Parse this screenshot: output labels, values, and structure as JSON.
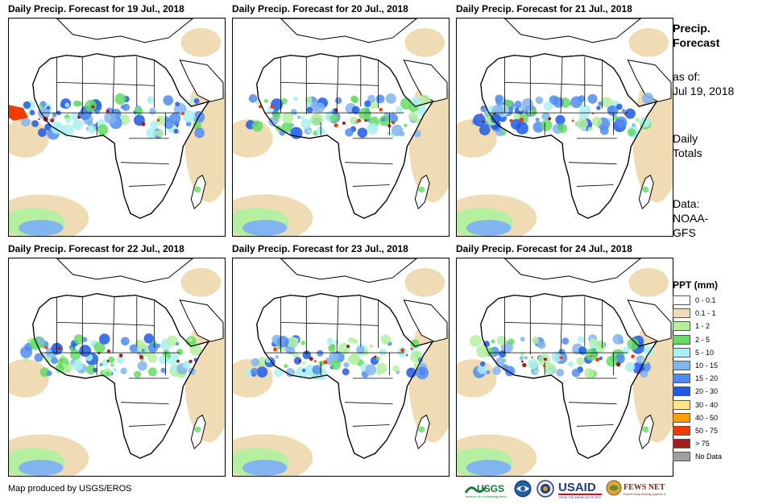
{
  "panels": [
    {
      "title": "Daily Precip. Forecast for 19 Jul., 2018"
    },
    {
      "title": "Daily Precip. Forecast for 20 Jul., 2018"
    },
    {
      "title": "Daily Precip. Forecast for 21 Jul., 2018"
    },
    {
      "title": "Daily Precip. Forecast for 22 Jul., 2018"
    },
    {
      "title": "Daily Precip. Forecast for 23 Jul., 2018"
    },
    {
      "title": "Daily Precip. Forecast for 24 Jul., 2018"
    }
  ],
  "sidebar": {
    "title_line1": "Precip.",
    "title_line2": "Forecast",
    "asof_label": "as of:",
    "asof_date": "Jul 19, 2018",
    "totals_line1": "Daily",
    "totals_line2": "Totals",
    "data_line1": "Data:",
    "data_line2": "NOAA-",
    "data_line3": "GFS"
  },
  "legend": {
    "title": "PPT (mm)",
    "items": [
      {
        "label": "0 - 0.1",
        "color": "#ffffff"
      },
      {
        "label": "0.1 - 1",
        "color": "#f0dcb4"
      },
      {
        "label": "1 - 2",
        "color": "#b4f0a0"
      },
      {
        "label": "2 - 5",
        "color": "#64dc64"
      },
      {
        "label": "5 - 10",
        "color": "#aaf0f0"
      },
      {
        "label": "10 - 15",
        "color": "#82b4f0"
      },
      {
        "label": "15 - 20",
        "color": "#508cf0"
      },
      {
        "label": "20 - 30",
        "color": "#1e5ae6"
      },
      {
        "label": "30 - 40",
        "color": "#ffe682"
      },
      {
        "label": "40 - 50",
        "color": "#ffa000"
      },
      {
        "label": "50 - 75",
        "color": "#f03c00"
      },
      {
        "label": "> 75",
        "color": "#a01e1e"
      },
      {
        "label": "No Data",
        "color": "#a0a0a0"
      }
    ]
  },
  "footer": {
    "credit": "Map produced by USGS/EROS",
    "logos": [
      "USGS",
      "NOAA",
      "U.S. Department of State",
      "USAID",
      "FEWS NET"
    ]
  }
}
